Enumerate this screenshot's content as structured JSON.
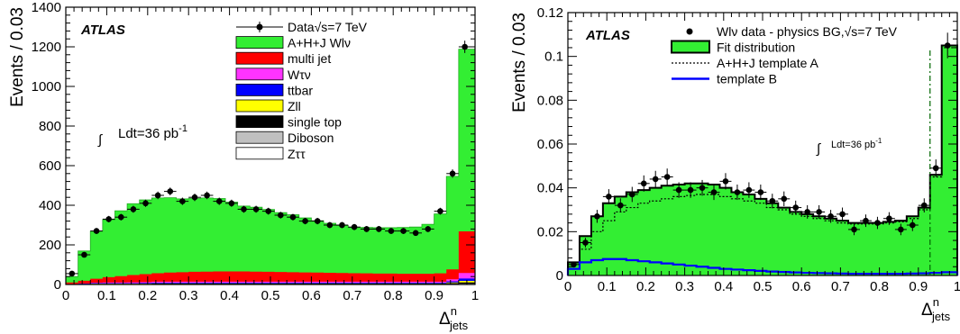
{
  "chart_data": [
    {
      "type": "bar",
      "stacked": true,
      "label": "ATLAS",
      "xlabel_base": "Δ",
      "xlabel_sup": "n",
      "xlabel_sub": "jets",
      "ylabel": "Events / 0.03",
      "xlim": [
        0,
        1
      ],
      "ylim": [
        0,
        1400
      ],
      "xticks": [
        "0",
        "0.1",
        "0.2",
        "0.3",
        "0.4",
        "0.5",
        "0.6",
        "0.7",
        "0.8",
        "0.9",
        "1"
      ],
      "yticks": [
        "0",
        "200",
        "400",
        "600",
        "800",
        "1000",
        "1200",
        "1400"
      ],
      "lumi_text": "Ldt=36 pb",
      "lumi_sup": "-1",
      "bin_edges": [
        0,
        0.03,
        0.06,
        0.09,
        0.12,
        0.15,
        0.18,
        0.21,
        0.24,
        0.27,
        0.3,
        0.33,
        0.36,
        0.39,
        0.42,
        0.45,
        0.48,
        0.51,
        0.54,
        0.57,
        0.6,
        0.63,
        0.66,
        0.69,
        0.72,
        0.75,
        0.78,
        0.81,
        0.84,
        0.87,
        0.9,
        0.93,
        0.96,
        1.0
      ],
      "legend": [
        {
          "label": "Data√s=7 TeV",
          "style": "marker",
          "color": "#000000"
        },
        {
          "label": "A+H+J Wlν",
          "style": "fill",
          "color": "#33ee33"
        },
        {
          "label": "multi jet",
          "style": "fill",
          "color": "#ff0000"
        },
        {
          "label": "Wτν",
          "style": "fill",
          "color": "#ff33ff"
        },
        {
          "label": "ttbar",
          "style": "fill",
          "color": "#0000ff"
        },
        {
          "label": "Zll",
          "style": "fill",
          "color": "#ffff00"
        },
        {
          "label": "single top",
          "style": "fill",
          "color": "#000000"
        },
        {
          "label": "Diboson",
          "style": "fill",
          "color": "#c0c0c0"
        },
        {
          "label": "Zττ",
          "style": "fill",
          "color": "#ffffff"
        }
      ],
      "series": [
        {
          "name": "Zττ",
          "color": "#ffffff",
          "values": [
            0,
            0,
            0,
            0,
            0,
            0,
            0,
            0,
            0,
            0,
            0,
            0,
            0,
            0,
            0,
            0,
            0,
            0,
            0,
            0,
            0,
            0,
            0,
            0,
            0,
            0,
            0,
            0,
            0,
            0,
            0,
            1,
            1
          ]
        },
        {
          "name": "Diboson",
          "color": "#c0c0c0",
          "values": [
            0,
            1,
            1,
            1,
            1,
            1,
            1,
            1,
            1,
            1,
            1,
            1,
            1,
            1,
            1,
            1,
            1,
            1,
            1,
            1,
            1,
            1,
            1,
            1,
            1,
            1,
            1,
            1,
            1,
            1,
            1,
            2,
            3
          ]
        },
        {
          "name": "single top",
          "color": "#000000",
          "values": [
            0,
            1,
            2,
            2,
            2,
            2,
            2,
            3,
            3,
            3,
            3,
            3,
            3,
            3,
            3,
            3,
            3,
            3,
            3,
            3,
            3,
            3,
            3,
            3,
            3,
            3,
            3,
            3,
            3,
            3,
            3,
            4,
            6
          ]
        },
        {
          "name": "Zll",
          "color": "#ffff00",
          "values": [
            0,
            0,
            1,
            1,
            1,
            1,
            1,
            1,
            1,
            1,
            1,
            1,
            1,
            1,
            1,
            1,
            1,
            1,
            1,
            1,
            1,
            1,
            1,
            1,
            1,
            1,
            1,
            1,
            1,
            1,
            1,
            3,
            8
          ]
        },
        {
          "name": "ttbar",
          "color": "#0000ff",
          "values": [
            0,
            2,
            3,
            3,
            3,
            3,
            4,
            4,
            4,
            4,
            4,
            4,
            4,
            4,
            4,
            4,
            4,
            4,
            4,
            4,
            4,
            4,
            4,
            4,
            4,
            4,
            4,
            4,
            4,
            4,
            4,
            6,
            12
          ]
        },
        {
          "name": "Wτν",
          "color": "#ff33ff",
          "values": [
            0,
            1,
            2,
            3,
            3,
            4,
            4,
            5,
            5,
            5,
            5,
            5,
            5,
            5,
            5,
            5,
            5,
            5,
            5,
            5,
            5,
            5,
            5,
            5,
            5,
            5,
            5,
            5,
            5,
            5,
            5,
            10,
            28
          ]
        },
        {
          "name": "multi jet",
          "color": "#ff0000",
          "values": [
            10,
            14,
            20,
            27,
            32,
            37,
            40,
            43,
            46,
            48,
            50,
            51,
            52,
            52,
            52,
            51,
            50,
            49,
            48,
            47,
            46,
            45,
            44,
            43,
            42,
            41,
            41,
            40,
            40,
            40,
            42,
            50,
            210
          ]
        },
        {
          "name": "A+H+J Wlν",
          "color": "#33ee33",
          "values": [
            30,
            150,
            240,
            290,
            330,
            360,
            375,
            380,
            378,
            370,
            370,
            372,
            368,
            350,
            330,
            325,
            315,
            300,
            290,
            275,
            262,
            250,
            240,
            230,
            232,
            232,
            232,
            234,
            236,
            250,
            300,
            470,
            920
          ]
        }
      ],
      "data": {
        "name": "Data√s=7 TeV",
        "x": [
          0.015,
          0.045,
          0.075,
          0.105,
          0.135,
          0.165,
          0.195,
          0.225,
          0.255,
          0.285,
          0.315,
          0.345,
          0.375,
          0.405,
          0.435,
          0.465,
          0.495,
          0.525,
          0.555,
          0.585,
          0.615,
          0.645,
          0.675,
          0.705,
          0.735,
          0.765,
          0.795,
          0.825,
          0.855,
          0.885,
          0.915,
          0.945,
          0.975
        ],
        "y": [
          55,
          150,
          270,
          330,
          340,
          380,
          410,
          450,
          470,
          420,
          440,
          450,
          420,
          410,
          380,
          380,
          370,
          350,
          340,
          320,
          320,
          300,
          300,
          290,
          280,
          280,
          270,
          270,
          260,
          280,
          370,
          560,
          1200
        ]
      }
    },
    {
      "type": "bar",
      "label": "ATLAS",
      "xlabel_base": "Δ",
      "xlabel_sup": "n",
      "xlabel_sub": "jets",
      "ylabel": "Events / 0.03",
      "xlim": [
        0,
        1
      ],
      "ylim": [
        0,
        0.12
      ],
      "xticks": [
        "0",
        "0.1",
        "0.2",
        "0.3",
        "0.4",
        "0.5",
        "0.6",
        "0.7",
        "0.8",
        "0.9",
        "1"
      ],
      "yticks": [
        "0",
        "0.02",
        "0.04",
        "0.06",
        "0.08",
        "0.1",
        "0.12"
      ],
      "lumi_text": "Ldt=36 pb",
      "lumi_sup": "-1",
      "cut_line_x": 0.93,
      "bin_edges": [
        0,
        0.03,
        0.06,
        0.09,
        0.12,
        0.15,
        0.18,
        0.21,
        0.24,
        0.27,
        0.3,
        0.33,
        0.36,
        0.39,
        0.42,
        0.45,
        0.48,
        0.51,
        0.54,
        0.57,
        0.6,
        0.63,
        0.66,
        0.69,
        0.72,
        0.75,
        0.78,
        0.81,
        0.84,
        0.87,
        0.9,
        0.93,
        0.96,
        1.0
      ],
      "legend": [
        {
          "label": "Wlν data - physics BG,√s=7 TeV",
          "style": "marker",
          "color": "#000000"
        },
        {
          "label": "Fit distribution",
          "style": "fill",
          "color": "#33ee33"
        },
        {
          "label": "A+H+J template A",
          "style": "dotted",
          "color": "#000000"
        },
        {
          "label": "template B",
          "style": "line",
          "color": "#0000ff"
        }
      ],
      "series": [
        {
          "name": "Fit distribution",
          "color": "#33ee33",
          "values": [
            0.006,
            0.018,
            0.027,
            0.033,
            0.036,
            0.038,
            0.039,
            0.04,
            0.041,
            0.0415,
            0.042,
            0.042,
            0.0415,
            0.04,
            0.038,
            0.037,
            0.035,
            0.033,
            0.031,
            0.029,
            0.028,
            0.027,
            0.026,
            0.025,
            0.024,
            0.024,
            0.024,
            0.0245,
            0.025,
            0.027,
            0.031,
            0.046,
            0.105
          ]
        },
        {
          "name": "A+H+J template A",
          "color": "#000000",
          "values": [
            0.003,
            0.012,
            0.02,
            0.025,
            0.029,
            0.031,
            0.033,
            0.034,
            0.035,
            0.036,
            0.0365,
            0.037,
            0.037,
            0.036,
            0.035,
            0.034,
            0.033,
            0.031,
            0.03,
            0.028,
            0.027,
            0.026,
            0.025,
            0.024,
            0.0235,
            0.0235,
            0.0235,
            0.024,
            0.0245,
            0.026,
            0.03,
            0.045,
            0.104
          ]
        },
        {
          "name": "template B",
          "color": "#0000ff",
          "values": [
            0.003,
            0.006,
            0.007,
            0.0075,
            0.0075,
            0.007,
            0.0065,
            0.006,
            0.0055,
            0.005,
            0.0045,
            0.004,
            0.0035,
            0.003,
            0.0027,
            0.0024,
            0.0021,
            0.0018,
            0.0016,
            0.0014,
            0.0012,
            0.0011,
            0.001,
            0.0009,
            0.0008,
            0.0008,
            0.0008,
            0.0008,
            0.0008,
            0.0009,
            0.001,
            0.0012,
            0.0015
          ]
        }
      ],
      "data": {
        "name": "Wlν data - physics BG,√s=7 TeV",
        "x": [
          0.015,
          0.045,
          0.075,
          0.105,
          0.135,
          0.165,
          0.195,
          0.225,
          0.255,
          0.285,
          0.315,
          0.345,
          0.375,
          0.405,
          0.435,
          0.465,
          0.495,
          0.525,
          0.555,
          0.585,
          0.615,
          0.645,
          0.675,
          0.705,
          0.735,
          0.765,
          0.795,
          0.825,
          0.855,
          0.885,
          0.915,
          0.945,
          0.975
        ],
        "y": [
          0.005,
          0.015,
          0.027,
          0.036,
          0.032,
          0.037,
          0.042,
          0.044,
          0.045,
          0.039,
          0.039,
          0.04,
          0.038,
          0.043,
          0.038,
          0.039,
          0.038,
          0.034,
          0.035,
          0.031,
          0.029,
          0.029,
          0.027,
          0.028,
          0.021,
          0.025,
          0.024,
          0.026,
          0.021,
          0.023,
          0.032,
          0.049,
          0.105
        ]
      }
    }
  ]
}
